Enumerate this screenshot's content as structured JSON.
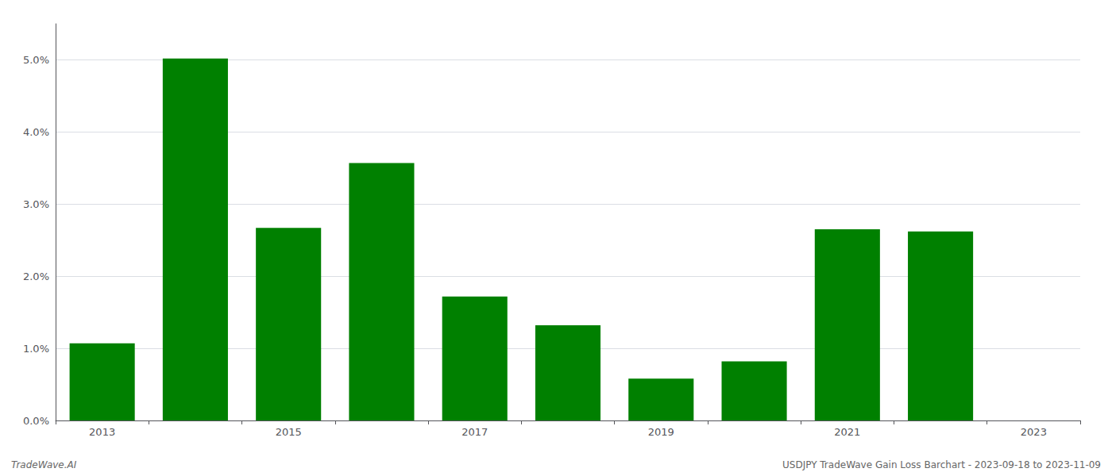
{
  "chart_data": {
    "type": "bar",
    "categories": [
      "2013",
      null,
      "2015",
      null,
      "2017",
      null,
      "2019",
      null,
      "2021",
      null,
      "2023"
    ],
    "values": [
      0.0107,
      0.0502,
      0.0267,
      0.0357,
      0.0172,
      0.0132,
      0.0058,
      0.0082,
      0.0265,
      0.0262,
      0.0
    ],
    "color": "#008000",
    "ylim": [
      0.0,
      0.055
    ],
    "yticks": [
      {
        "value": 0.0,
        "label": "0.0%"
      },
      {
        "value": 0.01,
        "label": "1.0%"
      },
      {
        "value": 0.02,
        "label": "2.0%"
      },
      {
        "value": 0.03,
        "label": "3.0%"
      },
      {
        "value": 0.04,
        "label": "4.0%"
      },
      {
        "value": 0.05,
        "label": "5.0%"
      }
    ],
    "grid": true,
    "annotations": [
      "TradeWave.AI",
      "USDJPY TradeWave Gain Loss Barchart - 2023-09-18 to 2023-11-09"
    ]
  }
}
